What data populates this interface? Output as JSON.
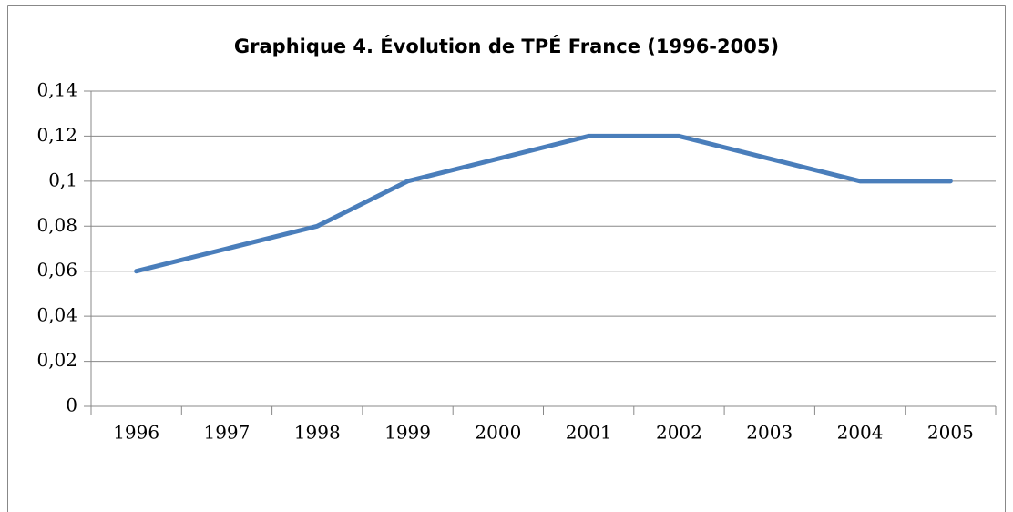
{
  "chart_data": {
    "type": "line",
    "title": "Graphique 4. Évolution de TPÉ France (1996-2005)",
    "categories": [
      "1996",
      "1997",
      "1998",
      "1999",
      "2000",
      "2001",
      "2002",
      "2003",
      "2004",
      "2005"
    ],
    "values": [
      0.06,
      0.07,
      0.08,
      0.1,
      0.11,
      0.12,
      0.12,
      0.11,
      0.1,
      0.1
    ],
    "color": "#4a7ebb",
    "ylim": [
      0,
      0.14
    ],
    "yticks": [
      0,
      {
        "value": 0.02,
        "label": "0,02"
      },
      {
        "value": 0.04,
        "label": "0,04"
      },
      {
        "value": 0.06,
        "label": "0,06"
      },
      {
        "value": 0.08,
        "label": "0,08"
      },
      {
        "value": 0.1,
        "label": "0,1"
      },
      {
        "value": 0.12,
        "label": "0,12"
      },
      {
        "value": 0.14,
        "label": "0,14"
      }
    ],
    "grid": true
  }
}
